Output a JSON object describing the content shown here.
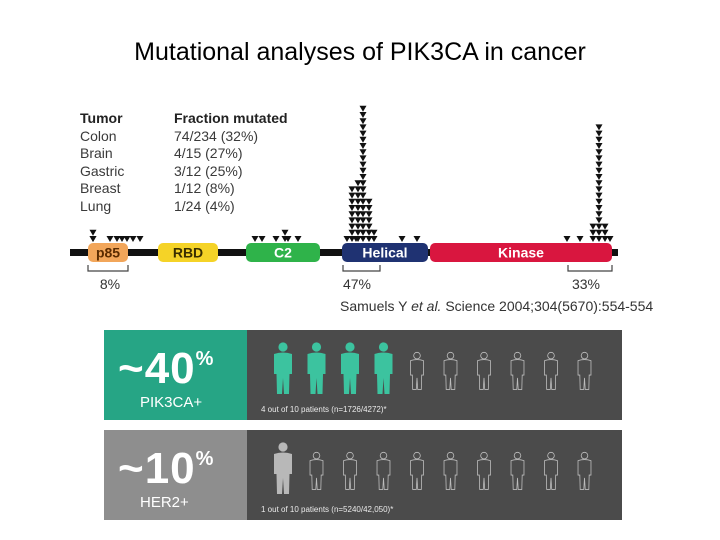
{
  "title": "Mutational analyses of PIK3CA in cancer",
  "table": {
    "header": [
      "Tumor",
      "Fraction mutated"
    ],
    "rows": [
      [
        "Colon",
        "74/234 (32%)"
      ],
      [
        "Brain",
        "4/15 (27%)"
      ],
      [
        "Gastric",
        "3/12 (25%)"
      ],
      [
        "Breast",
        "1/12 (8%)"
      ],
      [
        "Lung",
        "1/24 (4%)"
      ]
    ]
  },
  "domains": [
    {
      "name": "p85",
      "color": "#f2a65a",
      "text_color": "#5a2b00"
    },
    {
      "name": "RBD",
      "color": "#f5d327",
      "text_color": "#3a2f00"
    },
    {
      "name": "C2",
      "color": "#2fb34a",
      "text_color": "#ffffff"
    },
    {
      "name": "Helical",
      "color": "#1f3272",
      "text_color": "#ffffff"
    },
    {
      "name": "Kinase",
      "color": "#d9163f",
      "text_color": "#ffffff"
    }
  ],
  "region_percents": [
    "8%",
    "47%",
    "33%"
  ],
  "citation": {
    "authors": "Samuels Y ",
    "etal": "et al.",
    "rest": " Science 2004;304(5670):554-554"
  },
  "panels": [
    {
      "pct": "~40",
      "pct_sign": "%",
      "label": "PIK3CA+",
      "caption": "4 out of 10 patients (n=1726/4272)*",
      "highlighted": 4,
      "total": 10,
      "accent": "#3cc39f",
      "left_bg": "#26a585"
    },
    {
      "pct": "~10",
      "pct_sign": "%",
      "label": "HER2+",
      "caption": "1 out of 10 patients (n=5240/42,050)*",
      "highlighted": 1,
      "total": 10,
      "accent": "#b8b8b8",
      "left_bg": "#8e8e8e"
    }
  ]
}
